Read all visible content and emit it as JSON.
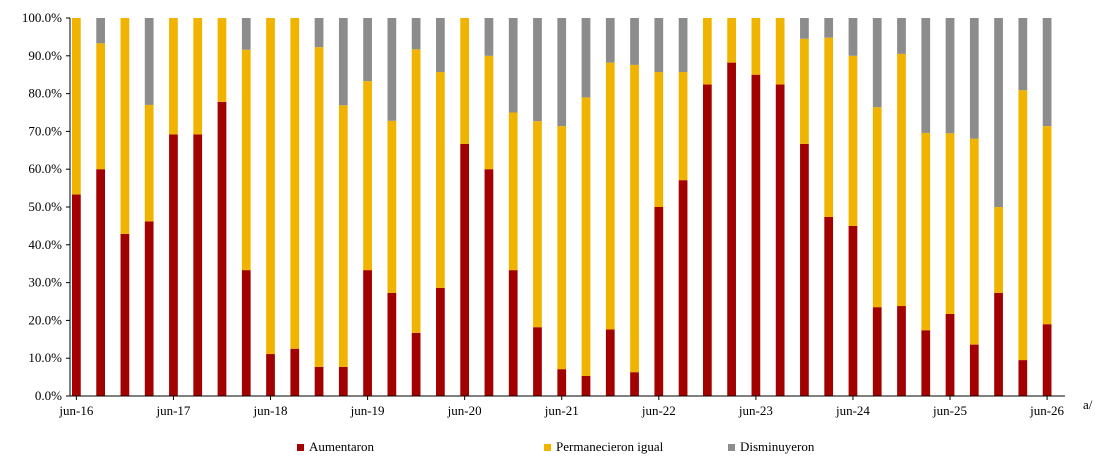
{
  "chart_data": {
    "type": "bar",
    "stacked": true,
    "normalized": true,
    "title": "",
    "xlabel": "",
    "ylabel": "",
    "ylim": [
      0,
      100
    ],
    "y_ticks": [
      "0.0%",
      "10.0%",
      "20.0%",
      "30.0%",
      "40.0%",
      "50.0%",
      "60.0%",
      "70.0%",
      "80.0%",
      "90.0%",
      "100.0%"
    ],
    "x_tick_labels": [
      "jun-16",
      "jun-17",
      "jun-18",
      "jun-19",
      "jun-20",
      "jun-21",
      "jun-22",
      "jun-23",
      "jun-24",
      "jun-25",
      "jun-26"
    ],
    "x_axis_note": "a/",
    "grid": false,
    "legend_position": "bottom",
    "categories_count": 41,
    "series": [
      {
        "name": "Aumentaron",
        "color": "#a30000",
        "values": [
          53.3,
          60.0,
          42.9,
          46.2,
          69.2,
          69.2,
          77.8,
          33.3,
          11.1,
          12.5,
          7.7,
          7.7,
          33.3,
          27.3,
          16.7,
          28.6,
          66.7,
          60.0,
          33.3,
          18.2,
          7.1,
          5.3,
          17.6,
          6.3,
          50.0,
          57.1,
          82.4,
          88.2,
          85.0,
          82.4,
          66.7,
          47.4,
          45.0,
          23.5,
          23.8,
          17.4,
          21.7,
          13.6,
          27.3,
          9.5,
          19.0
        ]
      },
      {
        "name": "Permanecieron igual",
        "color": "#f0b400",
        "values": [
          46.7,
          33.3,
          57.1,
          30.8,
          30.8,
          30.8,
          22.2,
          58.3,
          88.9,
          87.5,
          84.6,
          69.2,
          50.0,
          45.5,
          75.0,
          57.1,
          33.3,
          30.0,
          41.7,
          54.5,
          64.3,
          73.7,
          70.6,
          81.3,
          35.7,
          28.6,
          17.6,
          11.8,
          15.0,
          17.6,
          27.8,
          47.4,
          45.0,
          52.9,
          66.7,
          52.2,
          47.8,
          54.5,
          22.7,
          71.4,
          52.4
        ]
      },
      {
        "name": "Disminuyeron",
        "color": "#8c8c8c",
        "values": [
          0.0,
          6.7,
          0.0,
          23.0,
          0.0,
          0.0,
          0.0,
          8.4,
          0.0,
          0.0,
          7.7,
          23.1,
          16.7,
          27.2,
          8.3,
          14.3,
          0.0,
          10.0,
          25.0,
          27.3,
          28.6,
          21.0,
          11.8,
          12.4,
          14.3,
          14.3,
          0.0,
          0.0,
          0.0,
          0.0,
          5.5,
          5.2,
          10.0,
          23.6,
          9.5,
          30.4,
          30.5,
          31.9,
          50.0,
          19.1,
          28.6
        ]
      }
    ]
  }
}
